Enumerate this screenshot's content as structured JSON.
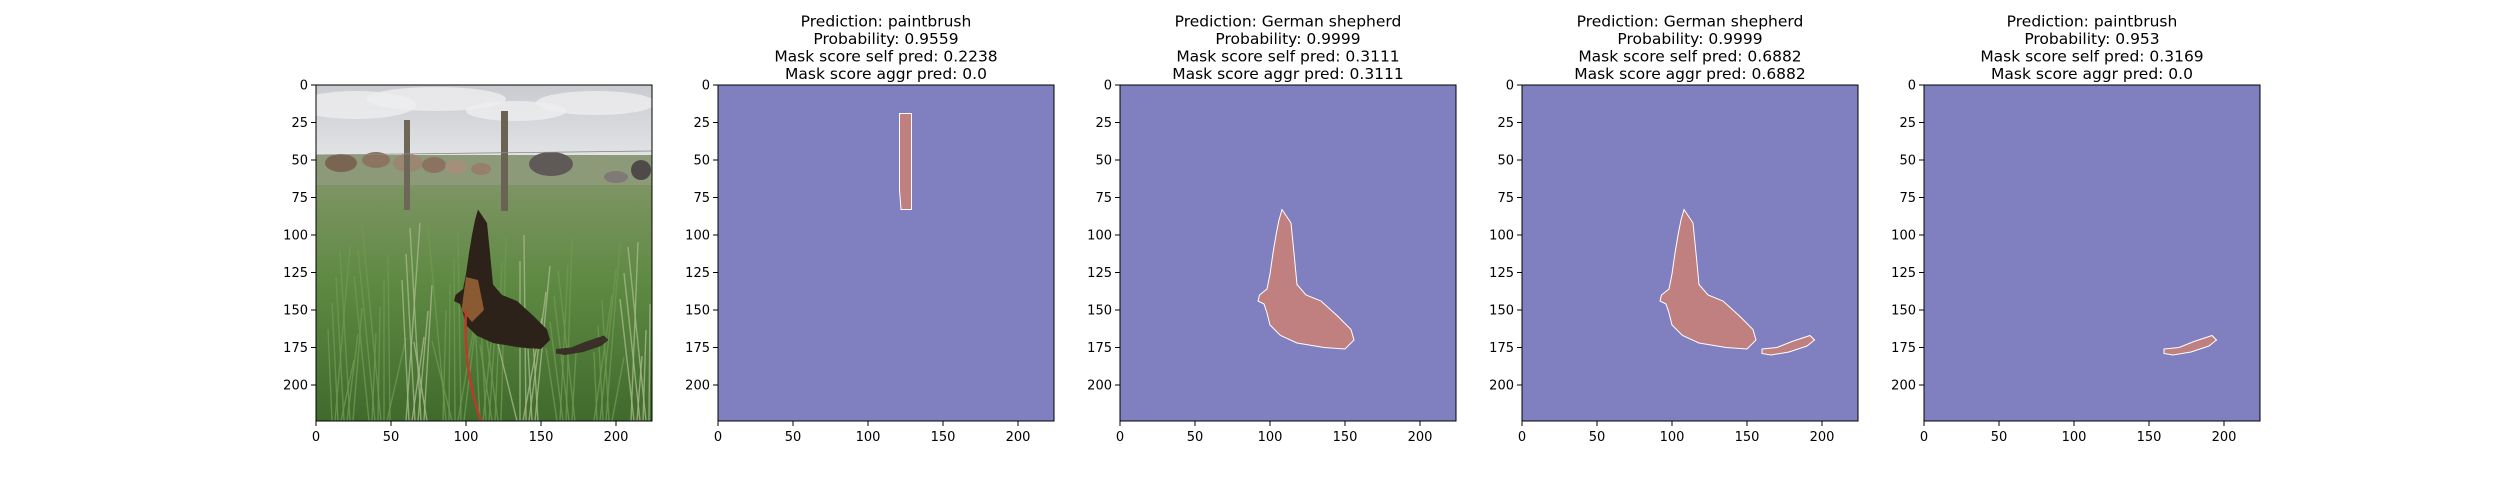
{
  "chart_data": [
    {
      "type": "image",
      "image": "photo-dog-cows-field",
      "title_lines": [],
      "xticks": [
        0,
        50,
        100,
        150,
        200
      ],
      "yticks": [
        0,
        25,
        50,
        75,
        100,
        125,
        150,
        175,
        200
      ],
      "xlim": [
        0,
        224
      ],
      "ylim": [
        224,
        0
      ]
    },
    {
      "type": "mask",
      "title_lines": [
        "Prediction: paintbrush",
        "Probability: 0.9559",
        "Mask score self pred: 0.2238",
        "Mask score aggr pred: 0.0"
      ],
      "mask_region": "vertical-post",
      "xticks": [
        0,
        50,
        100,
        150,
        200
      ],
      "yticks": [
        0,
        25,
        50,
        75,
        100,
        125,
        150,
        175,
        200
      ],
      "xlim": [
        0,
        224
      ],
      "ylim": [
        224,
        0
      ]
    },
    {
      "type": "mask",
      "title_lines": [
        "Prediction: German shepherd",
        "Probability: 0.9999",
        "Mask score self pred: 0.3111",
        "Mask score aggr pred: 0.3111"
      ],
      "mask_region": "dog",
      "xticks": [
        0,
        50,
        100,
        150,
        200
      ],
      "yticks": [
        0,
        25,
        50,
        75,
        100,
        125,
        150,
        175,
        200
      ],
      "xlim": [
        0,
        224
      ],
      "ylim": [
        224,
        0
      ]
    },
    {
      "type": "mask",
      "title_lines": [
        "Prediction: German shepherd",
        "Probability: 0.9999",
        "Mask score self pred: 0.6882",
        "Mask score aggr pred: 0.6882"
      ],
      "mask_region": "dog-and-tail",
      "xticks": [
        0,
        50,
        100,
        150,
        200
      ],
      "yticks": [
        0,
        25,
        50,
        75,
        100,
        125,
        150,
        175,
        200
      ],
      "xlim": [
        0,
        224
      ],
      "ylim": [
        224,
        0
      ]
    },
    {
      "type": "mask",
      "title_lines": [
        "Prediction: paintbrush",
        "Probability: 0.953",
        "Mask score self pred: 0.3169",
        "Mask score aggr pred: 0.0"
      ],
      "mask_region": "tail",
      "xticks": [
        0,
        50,
        100,
        150,
        200
      ],
      "yticks": [
        0,
        25,
        50,
        75,
        100,
        125,
        150,
        175,
        200
      ],
      "xlim": [
        0,
        224
      ],
      "ylim": [
        224,
        0
      ]
    }
  ],
  "colors": {
    "background_mask": "#8080c0",
    "foreground_mask": "#c08080",
    "outline": "#ffffff",
    "axis": "#000000"
  }
}
